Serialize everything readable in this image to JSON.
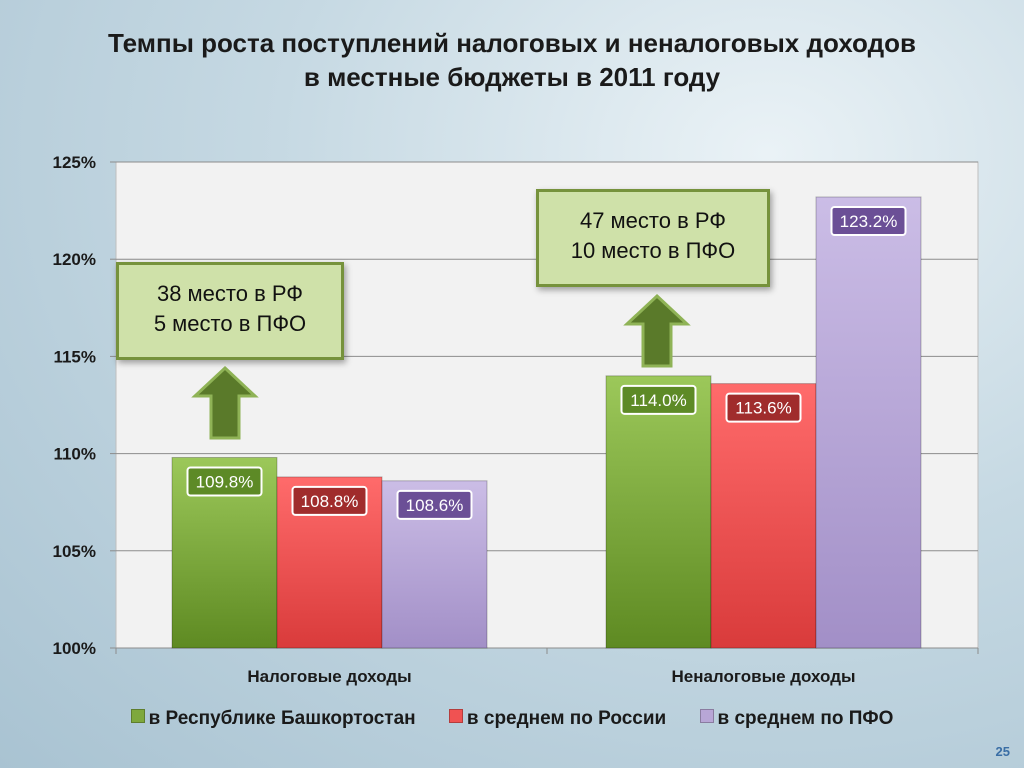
{
  "title_line1": "Темпы роста поступлений налоговых и неналоговых доходов",
  "title_line2": "в местные бюджеты в 2011 году",
  "callouts": [
    {
      "line1": "38 место в РФ",
      "line2": "5 место в ПФО"
    },
    {
      "line1": "47 место в РФ",
      "line2": "10 место в ПФО"
    }
  ],
  "page_number": "25",
  "chart_data": {
    "type": "bar",
    "categories": [
      "Налоговые доходы",
      "Неналоговые доходы"
    ],
    "series": [
      {
        "name": "в Республике Башкортостан",
        "values": [
          109.8,
          114.0
        ],
        "labels": [
          "109.8%",
          "114.0%"
        ],
        "color": "#7ea83c"
      },
      {
        "name": "в среднем по России",
        "values": [
          108.8,
          113.6
        ],
        "labels": [
          "108.8%",
          "113.6%"
        ],
        "color": "#f05252"
      },
      {
        "name": "в среднем по ПФО",
        "values": [
          108.6,
          123.2
        ],
        "labels": [
          "108.6%",
          "123.2%"
        ],
        "color": "#b8a6d6"
      }
    ],
    "label_box_colors": [
      "#5d8a26",
      "#a02c2c",
      "#6b4f96"
    ],
    "yticks": [
      "100%",
      "105%",
      "110%",
      "115%",
      "120%",
      "125%"
    ],
    "ylim": [
      100,
      125
    ],
    "grid": true,
    "legend_position": "bottom"
  }
}
